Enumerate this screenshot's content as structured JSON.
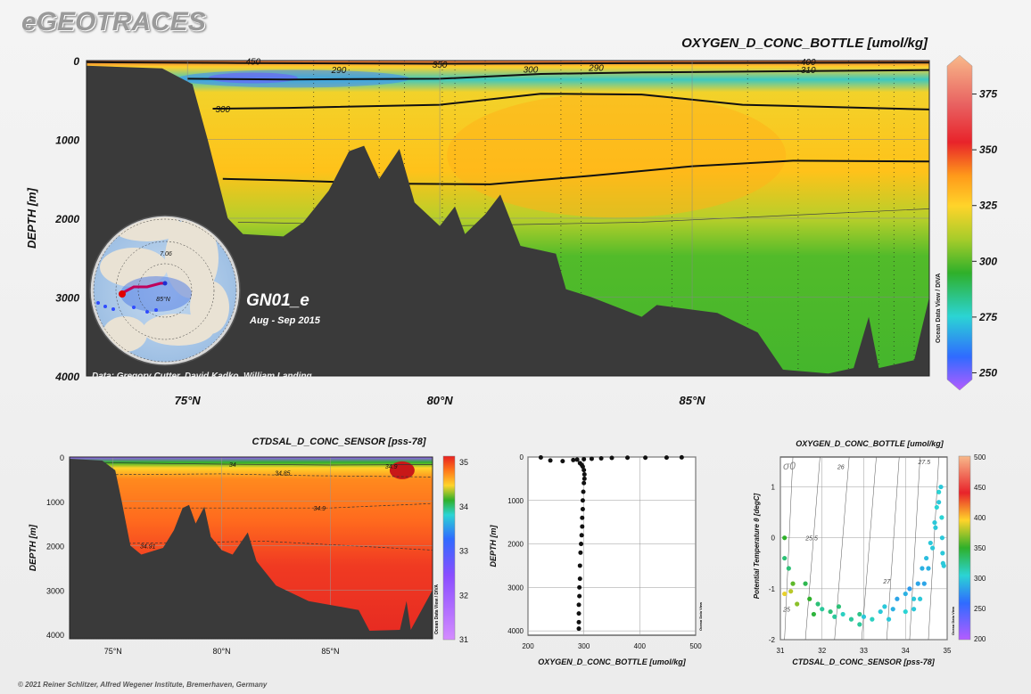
{
  "brand": "eGEOTRACES",
  "footer": "© 2021 Reiner Schlitzer, Alfred Wegener Institute, Bremerhaven, Germany",
  "main": {
    "title": "OXYGEN_D_CONC_BOTTLE [umol/kg]",
    "ylabel": "DEPTH [m]",
    "credit": "Data: Gregory Cutter, David Kadko, William Landing",
    "cruise": "GN01_e",
    "period": "Aug - Sep 2015",
    "side_label": "Ocean Data View / DIVA",
    "map_labels": [
      "7.06",
      "85°N"
    ]
  },
  "chart_data": [
    {
      "type": "heatmap",
      "title": "OXYGEN_D_CONC_BOTTLE [umol/kg]",
      "xlabel": "",
      "ylabel": "DEPTH [m]",
      "x_ticks": [
        "75°N",
        "80°N",
        "85°N"
      ],
      "x_tick_values": [
        75,
        80,
        85
      ],
      "xlim": [
        73,
        89.7
      ],
      "ylim": [
        4000,
        0
      ],
      "y_ticks": [
        0,
        1000,
        2000,
        3000,
        4000
      ],
      "colorbar": {
        "ticks": [
          250,
          275,
          300,
          325,
          350,
          375
        ],
        "range": [
          245,
          390
        ]
      },
      "contour_labels": [
        {
          "text": "290",
          "x": 78.0,
          "depth": 115
        },
        {
          "text": "350",
          "x": 80.0,
          "depth": 45
        },
        {
          "text": "300",
          "x": 81.8,
          "depth": 110
        },
        {
          "text": "290",
          "x": 83.1,
          "depth": 85
        },
        {
          "text": "310",
          "x": 87.3,
          "depth": 115
        },
        {
          "text": "400",
          "x": 87.3,
          "depth": 10
        },
        {
          "text": "300",
          "x": 75.7,
          "depth": 610
        },
        {
          "text": "450",
          "x": 76.3,
          "depth": 5
        }
      ]
    },
    {
      "type": "heatmap",
      "title": "CTDSAL_D_CONC_SENSOR [pss-78]",
      "xlabel": "",
      "ylabel": "DEPTH [m]",
      "x_ticks": [
        "75°N",
        "80°N",
        "85°N"
      ],
      "x_tick_values": [
        75,
        80,
        85
      ],
      "xlim": [
        73,
        89.7
      ],
      "ylim": [
        4100,
        0
      ],
      "y_ticks": [
        0,
        1000,
        2000,
        3000,
        4000
      ],
      "colorbar": {
        "ticks": [
          31,
          32,
          33,
          34,
          35
        ],
        "range": [
          31,
          35
        ]
      },
      "contour_labels": [
        {
          "text": "34",
          "x": 80.5,
          "depth": 160
        },
        {
          "text": "34.85",
          "x": 82.8,
          "depth": 350
        },
        {
          "text": "34.9",
          "x": 87.8,
          "depth": 200
        },
        {
          "text": "34.9",
          "x": 84.5,
          "depth": 1150
        },
        {
          "text": "34.91",
          "x": 76.6,
          "depth": 2000
        }
      ]
    },
    {
      "type": "scatter",
      "title": "",
      "xlabel": "OXYGEN_D_CONC_BOTTLE [umol/kg]",
      "ylabel": "DEPTH [m]",
      "xlim": [
        200,
        500
      ],
      "ylim": [
        4100,
        0
      ],
      "x_ticks": [
        200,
        300,
        400,
        500
      ],
      "y_ticks": [
        0,
        1000,
        2000,
        3000,
        4000
      ],
      "points": [
        [
          223,
          10
        ],
        [
          240,
          80
        ],
        [
          262,
          95
        ],
        [
          281,
          70
        ],
        [
          288,
          60
        ],
        [
          300,
          50
        ],
        [
          314,
          40
        ],
        [
          331,
          30
        ],
        [
          350,
          20
        ],
        [
          378,
          15
        ],
        [
          410,
          15
        ],
        [
          448,
          12
        ],
        [
          475,
          8
        ],
        [
          293,
          140
        ],
        [
          296,
          180
        ],
        [
          298,
          220
        ],
        [
          300,
          300
        ],
        [
          301,
          400
        ],
        [
          301,
          500
        ],
        [
          300,
          600
        ],
        [
          299,
          800
        ],
        [
          298,
          1000
        ],
        [
          298,
          1200
        ],
        [
          297,
          1400
        ],
        [
          297,
          1600
        ],
        [
          296,
          1800
        ],
        [
          295,
          2000
        ],
        [
          294,
          2200
        ],
        [
          293,
          2500
        ],
        [
          293,
          2800
        ],
        [
          292,
          3000
        ],
        [
          292,
          3200
        ],
        [
          291,
          3400
        ],
        [
          291,
          3600
        ],
        [
          291,
          3800
        ],
        [
          291,
          3950
        ]
      ]
    },
    {
      "type": "scatter",
      "title": "OXYGEN_D_CONC_BOTTLE [umol/kg]",
      "xlabel": "CTDSAL_D_CONC_SENSOR [pss-78]",
      "ylabel": "Potential Temperature θ [degC]",
      "xlim": [
        31,
        35
      ],
      "ylim": [
        -2,
        1.5
      ],
      "x_ticks": [
        31,
        32,
        33,
        34,
        35
      ],
      "y_ticks": [
        -2,
        -1,
        0,
        1
      ],
      "isopycnal_labels": [
        "25",
        "25.5",
        "26",
        "27",
        "27.5"
      ],
      "sigma_label": "σ0",
      "colorbar": {
        "ticks": [
          200,
          250,
          300,
          350,
          400,
          450,
          500
        ],
        "range": [
          200,
          500
        ]
      },
      "points": [
        [
          31.1,
          0.0,
          350
        ],
        [
          31.1,
          -0.4,
          330
        ],
        [
          31.2,
          -0.6,
          330
        ],
        [
          31.3,
          -0.9,
          360
        ],
        [
          31.1,
          -1.1,
          390
        ],
        [
          31.25,
          -1.05,
          380
        ],
        [
          31.4,
          -1.3,
          370
        ],
        [
          31.6,
          -0.9,
          340
        ],
        [
          31.7,
          -1.2,
          350
        ],
        [
          31.8,
          -1.5,
          345
        ],
        [
          31.9,
          -1.3,
          330
        ],
        [
          32.0,
          -1.4,
          320
        ],
        [
          32.2,
          -1.45,
          330
        ],
        [
          32.3,
          -1.55,
          320
        ],
        [
          32.4,
          -1.35,
          330
        ],
        [
          32.5,
          -1.5,
          310
        ],
        [
          32.7,
          -1.6,
          320
        ],
        [
          32.9,
          -1.5,
          325
        ],
        [
          33.0,
          -1.55,
          300
        ],
        [
          33.2,
          -1.6,
          310
        ],
        [
          33.4,
          -1.45,
          300
        ],
        [
          33.5,
          -1.35,
          300
        ],
        [
          33.7,
          -1.4,
          290
        ],
        [
          33.8,
          -1.2,
          285
        ],
        [
          34.0,
          -1.1,
          290
        ],
        [
          34.1,
          -1.0,
          280
        ],
        [
          34.2,
          -1.2,
          300
        ],
        [
          34.3,
          -0.9,
          285
        ],
        [
          34.4,
          -0.6,
          290
        ],
        [
          34.5,
          -0.4,
          295
        ],
        [
          34.6,
          -0.1,
          300
        ],
        [
          34.7,
          0.3,
          300
        ],
        [
          34.75,
          0.6,
          305
        ],
        [
          34.8,
          0.9,
          305
        ],
        [
          34.85,
          1.0,
          300
        ],
        [
          34.87,
          0.4,
          305
        ],
        [
          34.88,
          0.0,
          300
        ],
        [
          34.89,
          -0.3,
          300
        ],
        [
          34.9,
          -0.5,
          300
        ],
        [
          34.92,
          -0.55,
          300
        ],
        [
          34.8,
          0.7,
          300
        ],
        [
          34.72,
          0.2,
          300
        ],
        [
          34.65,
          -0.2,
          300
        ],
        [
          34.55,
          -0.6,
          290
        ],
        [
          34.45,
          -0.9,
          285
        ],
        [
          34.35,
          -1.2,
          300
        ],
        [
          34.2,
          -1.4,
          300
        ],
        [
          34.0,
          -1.45,
          305
        ],
        [
          33.6,
          -1.6,
          300
        ],
        [
          32.9,
          -1.7,
          320
        ]
      ]
    }
  ],
  "panels": {
    "sal_title": "CTDSAL_D_CONC_SENSOR [pss-78]",
    "sal_ylabel": "DEPTH [m]",
    "sal_side": "Ocean Data View / DIVA",
    "prof_xlabel": "OXYGEN_D_CONC_BOTTLE [umol/kg]",
    "prof_ylabel": "DEPTH [m]",
    "prof_side": "Ocean Data View",
    "ts_title": "OXYGEN_D_CONC_BOTTLE [umol/kg]",
    "ts_xlabel": "CTDSAL_D_CONC_SENSOR [pss-78]",
    "ts_ylabel": "Potential Temperature θ [degC]",
    "ts_side": "Ocean Data View"
  }
}
